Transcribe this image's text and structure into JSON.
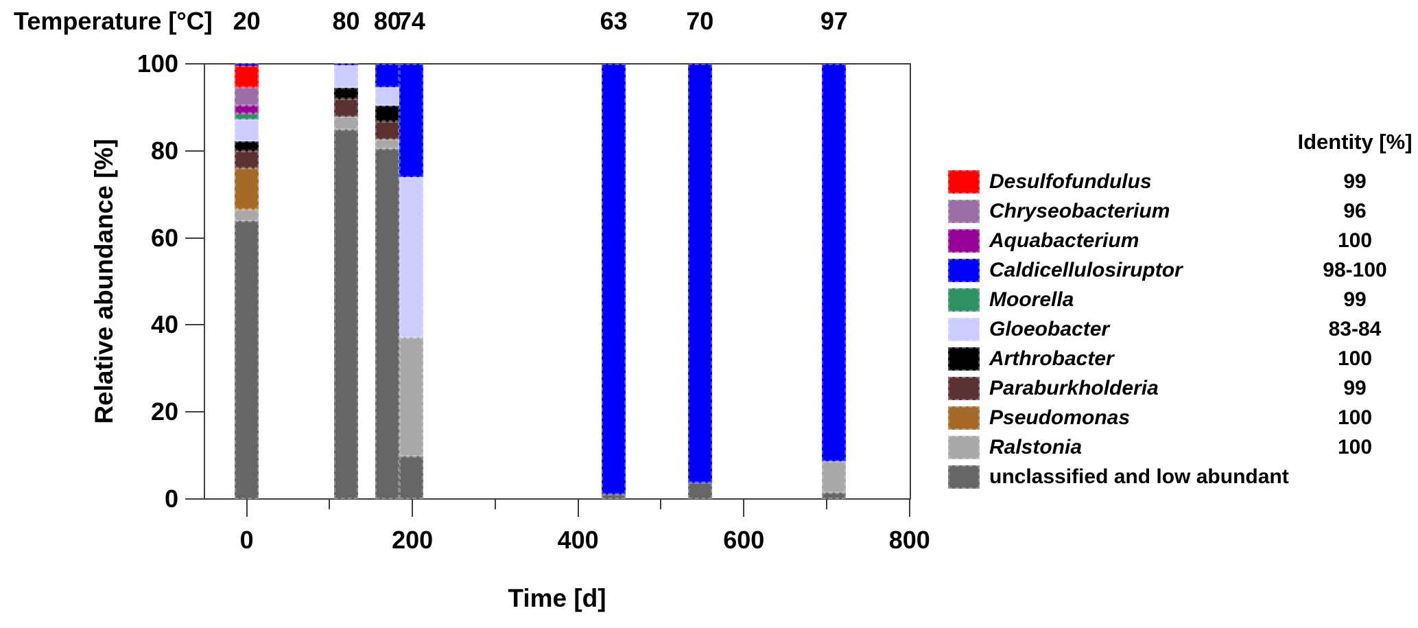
{
  "chart_data": {
    "type": "bar",
    "stacked": true,
    "temperature_header": "Temperature [°C]",
    "xlabel": "Time [d]",
    "ylabel": "Relative abundance [%]",
    "xlim": [
      -51,
      801
    ],
    "ylim": [
      0,
      100
    ],
    "y_ticks": [
      0,
      20,
      40,
      60,
      80,
      100
    ],
    "x_major_ticks": [
      0,
      200,
      400,
      600,
      800
    ],
    "x_minor_ticks": [
      100,
      300,
      500,
      700
    ],
    "bar_width_days": 29,
    "grid": false,
    "legend": {
      "identity_header": "Identity [%]",
      "position": "right"
    },
    "taxa": [
      {
        "name": "Desulfofundulus",
        "color": "#FF0000",
        "identity": "99",
        "italic": true
      },
      {
        "name": "Chryseobacterium",
        "color": "#9B6FA5",
        "identity": "96",
        "italic": true
      },
      {
        "name": "Aquabacterium",
        "color": "#990099",
        "identity": "100",
        "italic": true
      },
      {
        "name": "Caldicellulosiruptor",
        "color": "#0000FF",
        "identity": "98-100",
        "italic": true
      },
      {
        "name": "Moorella",
        "color": "#2E9163",
        "identity": "99",
        "italic": true
      },
      {
        "name": "Gloeobacter",
        "color": "#CCCCFF",
        "identity": "83-84",
        "italic": true
      },
      {
        "name": "Arthrobacter",
        "color": "#000000",
        "identity": "100",
        "italic": true
      },
      {
        "name": "Paraburkholderia",
        "color": "#5C3131",
        "identity": "99",
        "italic": true
      },
      {
        "name": "Pseudomonas",
        "color": "#A5692A",
        "identity": "100",
        "italic": true
      },
      {
        "name": "Ralstonia",
        "color": "#A8A8A8",
        "identity": "100",
        "italic": true
      },
      {
        "name": "unclassified and low abundant",
        "color": "#666666",
        "identity": "",
        "italic": false
      }
    ],
    "stack_order_bottom_to_top": [
      "unclassified and low abundant",
      "Ralstonia",
      "Pseudomonas",
      "Paraburkholderia",
      "Arthrobacter",
      "Gloeobacter",
      "Moorella",
      "Aquabacterium",
      "Chryseobacterium",
      "Desulfofundulus",
      "Caldicellulosiruptor"
    ],
    "bars": [
      {
        "time_d": 0,
        "temperature_c": "20",
        "segments": {
          "Desulfofundulus": 4.8,
          "Chryseobacterium": 4.3,
          "Aquabacterium": 1.7,
          "Caldicellulosiruptor": 0.5,
          "Moorella": 1.5,
          "Gloeobacter": 5.0,
          "Arthrobacter": 2.3,
          "Paraburkholderia": 3.9,
          "Pseudomonas": 9.4,
          "Ralstonia": 2.7,
          "unclassified and low abundant": 63.9
        }
      },
      {
        "time_d": 120,
        "temperature_c": "80",
        "segments": {
          "Caldicellulosiruptor": 0.3,
          "Gloeobacter": 5.2,
          "Arthrobacter": 2.5,
          "Paraburkholderia": 4.2,
          "Ralstonia": 2.9,
          "unclassified and low abundant": 84.9
        }
      },
      {
        "time_d": 170,
        "temperature_c": "80",
        "segments": {
          "Caldicellulosiruptor": 5.4,
          "Gloeobacter": 4.3,
          "Arthrobacter": 3.6,
          "Paraburkholderia": 4.1,
          "Ralstonia": 2.2,
          "unclassified and low abundant": 80.4
        }
      },
      {
        "time_d": 199,
        "temperature_c": "74",
        "segments": {
          "Caldicellulosiruptor": 26.1,
          "Gloeobacter": 36.8,
          "Ralstonia": 27.3,
          "unclassified and low abundant": 9.8
        }
      },
      {
        "time_d": 443,
        "temperature_c": "63",
        "segments": {
          "Caldicellulosiruptor": 98.9,
          "unclassified and low abundant": 1.1
        }
      },
      {
        "time_d": 547,
        "temperature_c": "70",
        "segments": {
          "Caldicellulosiruptor": 96.2,
          "unclassified and low abundant": 3.8
        }
      },
      {
        "time_d": 709,
        "temperature_c": "97",
        "segments": {
          "Caldicellulosiruptor": 91.3,
          "Ralstonia": 7.3,
          "unclassified and low abundant": 1.4
        }
      }
    ]
  }
}
